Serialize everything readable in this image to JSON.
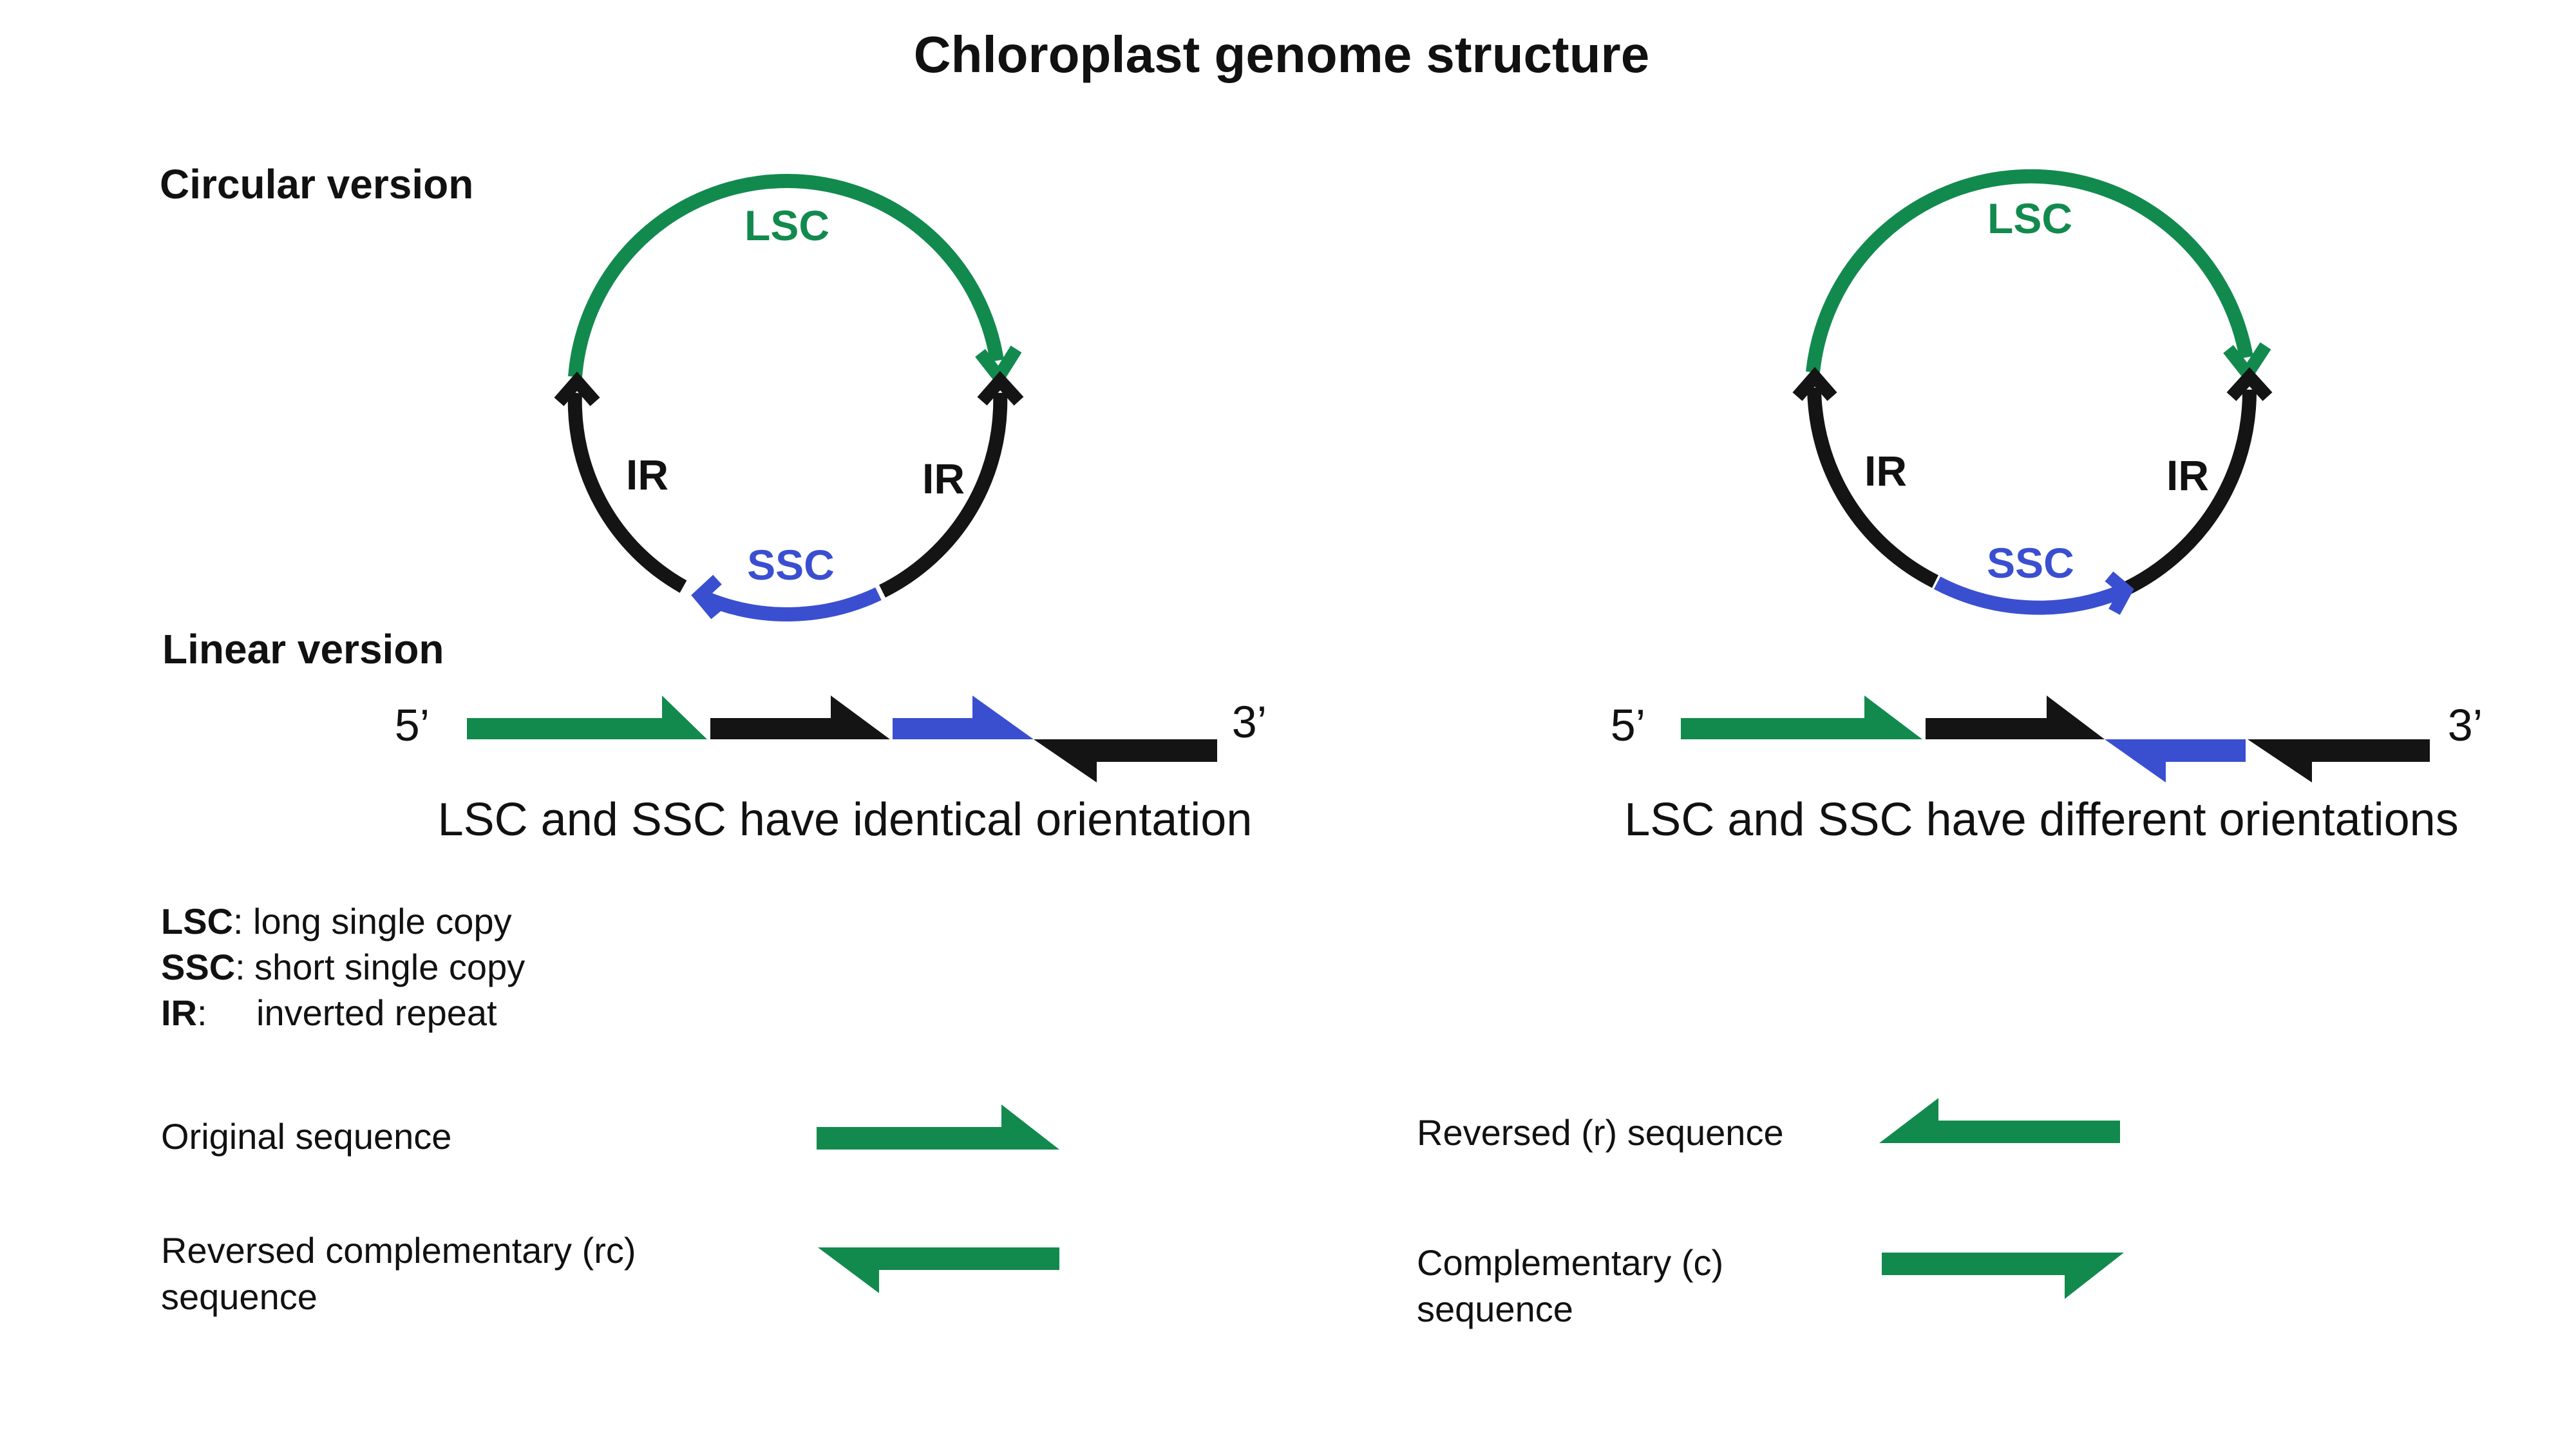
{
  "title": "Chloroplast genome structure",
  "sections": {
    "circular": "Circular version",
    "linear": "Linear version"
  },
  "colors": {
    "lsc": "#128a4e",
    "ssc": "#3a4fd0",
    "ir": "#141414"
  },
  "labels": {
    "lsc": "LSC",
    "ssc": "SSC",
    "ir": "IR",
    "five_prime": "5’",
    "three_prime": "3’"
  },
  "panels": [
    {
      "caption": "LSC and SSC have identical orientation"
    },
    {
      "caption": "LSC and SSC have different orientations"
    }
  ],
  "legend": [
    {
      "key": "LSC",
      "sep": ":",
      "desc": "long single copy"
    },
    {
      "key": "SSC",
      "sep": ":",
      "desc": "short single copy"
    },
    {
      "key": "IR",
      "sep": ":",
      "desc": "inverted repeat"
    }
  ],
  "sequences": {
    "original": "Original sequence",
    "reversed": "Reversed (r) sequence",
    "rc_line1": "Reversed complementary (rc)",
    "rc_line2": "sequence",
    "comp_line1": "Complementary (c)",
    "comp_line2": "sequence"
  }
}
